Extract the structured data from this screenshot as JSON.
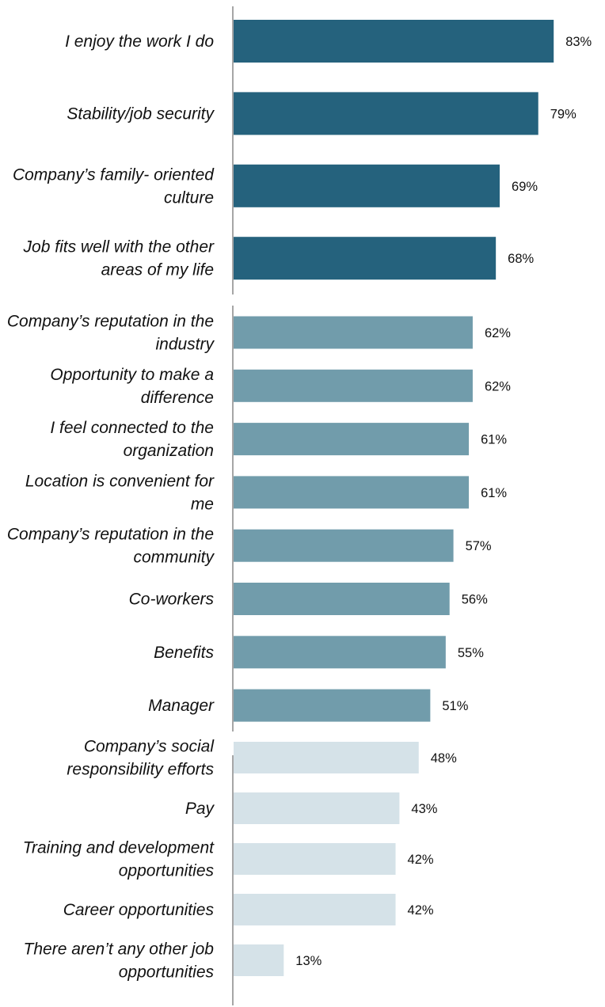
{
  "chart_data": {
    "type": "bar",
    "orientation": "horizontal",
    "xlim": [
      0,
      100
    ],
    "grid": false,
    "groups": [
      {
        "color": "#25627d",
        "items": [
          {
            "label": "I enjoy the work I do",
            "value": 83,
            "value_label": "83%"
          },
          {
            "label": "Stability/job security",
            "value": 79,
            "value_label": "79%"
          },
          {
            "label": "Company’s family- oriented culture",
            "value": 69,
            "value_label": "69%"
          },
          {
            "label": "Job fits well with the other areas of my life",
            "value": 68,
            "value_label": "68%"
          }
        ]
      },
      {
        "color": "#719cab",
        "items": [
          {
            "label": "Company’s reputation in the industry",
            "value": 62,
            "value_label": "62%"
          },
          {
            "label": "Opportunity to make a difference",
            "value": 62,
            "value_label": "62%"
          },
          {
            "label": "I feel connected to the organization",
            "value": 61,
            "value_label": "61%"
          },
          {
            "label": "Location is convenient for me",
            "value": 61,
            "value_label": "61%"
          },
          {
            "label": "Company’s reputation in the community",
            "value": 57,
            "value_label": "57%"
          },
          {
            "label": "Co-workers",
            "value": 56,
            "value_label": "56%"
          },
          {
            "label": "Benefits",
            "value": 55,
            "value_label": "55%"
          },
          {
            "label": "Manager",
            "value": 51,
            "value_label": "51%"
          }
        ]
      },
      {
        "color": "#d5e2e8",
        "items": [
          {
            "label": "Company’s social responsibility efforts",
            "value": 48,
            "value_label": "48%"
          },
          {
            "label": "Pay",
            "value": 43,
            "value_label": "43%"
          },
          {
            "label": "Training and development opportunities",
            "value": 42,
            "value_label": "42%"
          },
          {
            "label": "Career opportunities",
            "value": 42,
            "value_label": "42%"
          },
          {
            "label": "There aren’t any other job opportunities",
            "value": 13,
            "value_label": "13%"
          }
        ]
      }
    ]
  }
}
